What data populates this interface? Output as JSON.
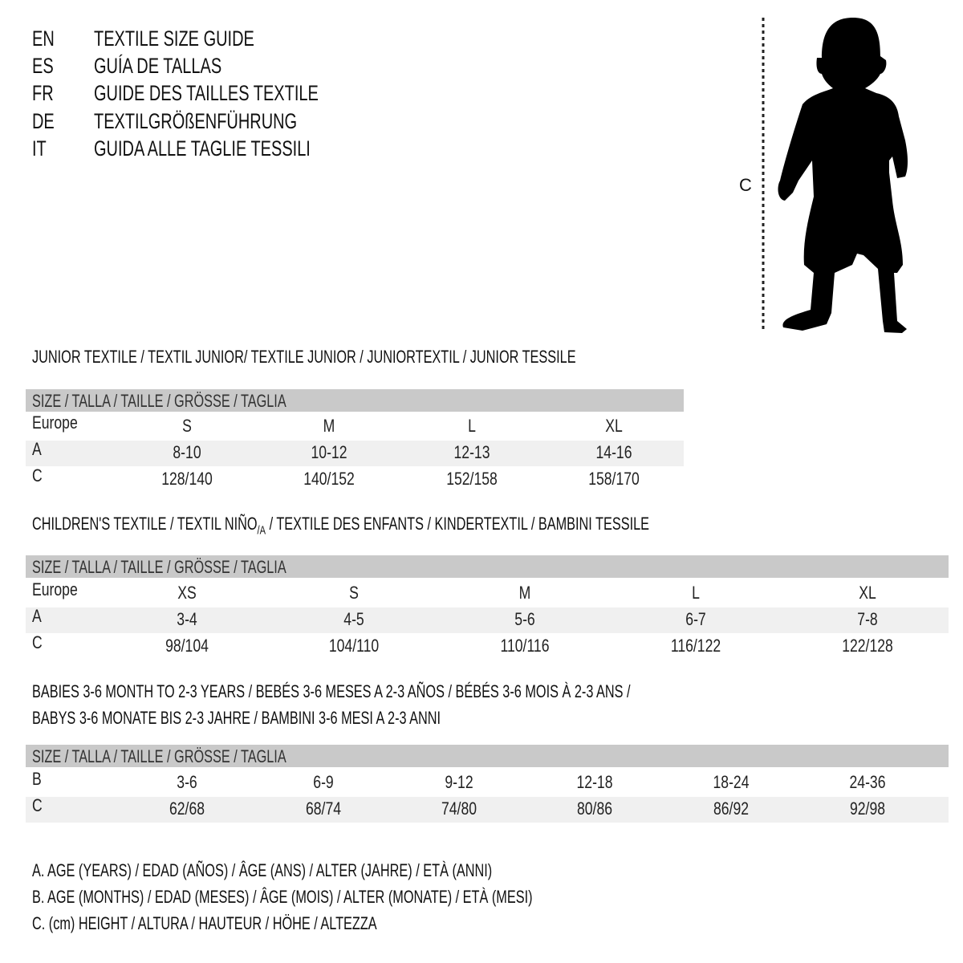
{
  "languages": [
    {
      "code": "EN",
      "title": "TEXTILE SIZE GUIDE"
    },
    {
      "code": "ES",
      "title": "GUÍA DE TALLAS"
    },
    {
      "code": "FR",
      "title": "GUIDE DES TAILLES TEXTILE"
    },
    {
      "code": "DE",
      "title": "TEXTILGRÖßENFÜHRUNG"
    },
    {
      "code": "IT",
      "title": "GUIDA ALLE TAGLIE TESSILI"
    }
  ],
  "figure": {
    "measure_label": "C",
    "icon": "child-silhouette-icon"
  },
  "colors": {
    "header_bar": "#c9c9c9",
    "shaded_row": "#f0f0f0"
  },
  "size_header": "SIZE / TALLA / TAILLE / GRÖSSE / TAGLIA",
  "junior": {
    "title": "JUNIOR TEXTILE / TEXTIL JUNIOR/ TEXTILE JUNIOR / JUNIORTEXTIL / JUNIOR TESSILE",
    "rows": [
      {
        "label": "Europe",
        "values": [
          "S",
          "M",
          "L",
          "XL"
        ]
      },
      {
        "label": "A",
        "values": [
          "8-10",
          "10-12",
          "12-13",
          "14-16"
        ]
      },
      {
        "label": "C",
        "values": [
          "128/140",
          "140/152",
          "152/158",
          "158/170"
        ]
      }
    ]
  },
  "children": {
    "title_before": "CHILDREN'S TEXTILE / TEXTIL NIÑO",
    "title_sub": "/A",
    "title_after": " / TEXTILE DES ENFANTS / KINDERTEXTIL / BAMBINI TESSILE",
    "rows": [
      {
        "label": "Europe",
        "values": [
          "XS",
          "S",
          "M",
          "L",
          "XL"
        ]
      },
      {
        "label": "A",
        "values": [
          "3-4",
          "4-5",
          "5-6",
          "6-7",
          "7-8"
        ]
      },
      {
        "label": "C",
        "values": [
          "98/104",
          "104/110",
          "110/116",
          "116/122",
          "122/128"
        ]
      }
    ]
  },
  "babies": {
    "title_line1": "BABIES 3-6 MONTH TO 2-3 YEARS / BEBÉS 3-6 MESES A 2-3 AÑOS / BÉBÉS 3-6 MOIS À 2-3 ANS /",
    "title_line2": "BABYS 3-6 MONATE BIS 2-3 JAHRE / BAMBINI 3-6 MESI A 2-3 ANNI",
    "rows": [
      {
        "label": "B",
        "values": [
          "3-6",
          "6-9",
          "9-12",
          "12-18",
          "18-24",
          "24-36"
        ]
      },
      {
        "label": "C",
        "values": [
          "62/68",
          "68/74",
          "74/80",
          "80/86",
          "86/92",
          "92/98"
        ]
      }
    ]
  },
  "legend": [
    "A. AGE (YEARS) / EDAD (AÑOS) / ÂGE (ANS) / ALTER (JAHRE) / ETÀ (ANNI)",
    "B. AGE (MONTHS) / EDAD (MESES) / ÂGE (MOIS) / ALTER (MONATE) / ETÀ (MESI)",
    "C. (cm) HEIGHT / ALTURA / HAUTEUR / HÖHE / ALTEZZA"
  ]
}
